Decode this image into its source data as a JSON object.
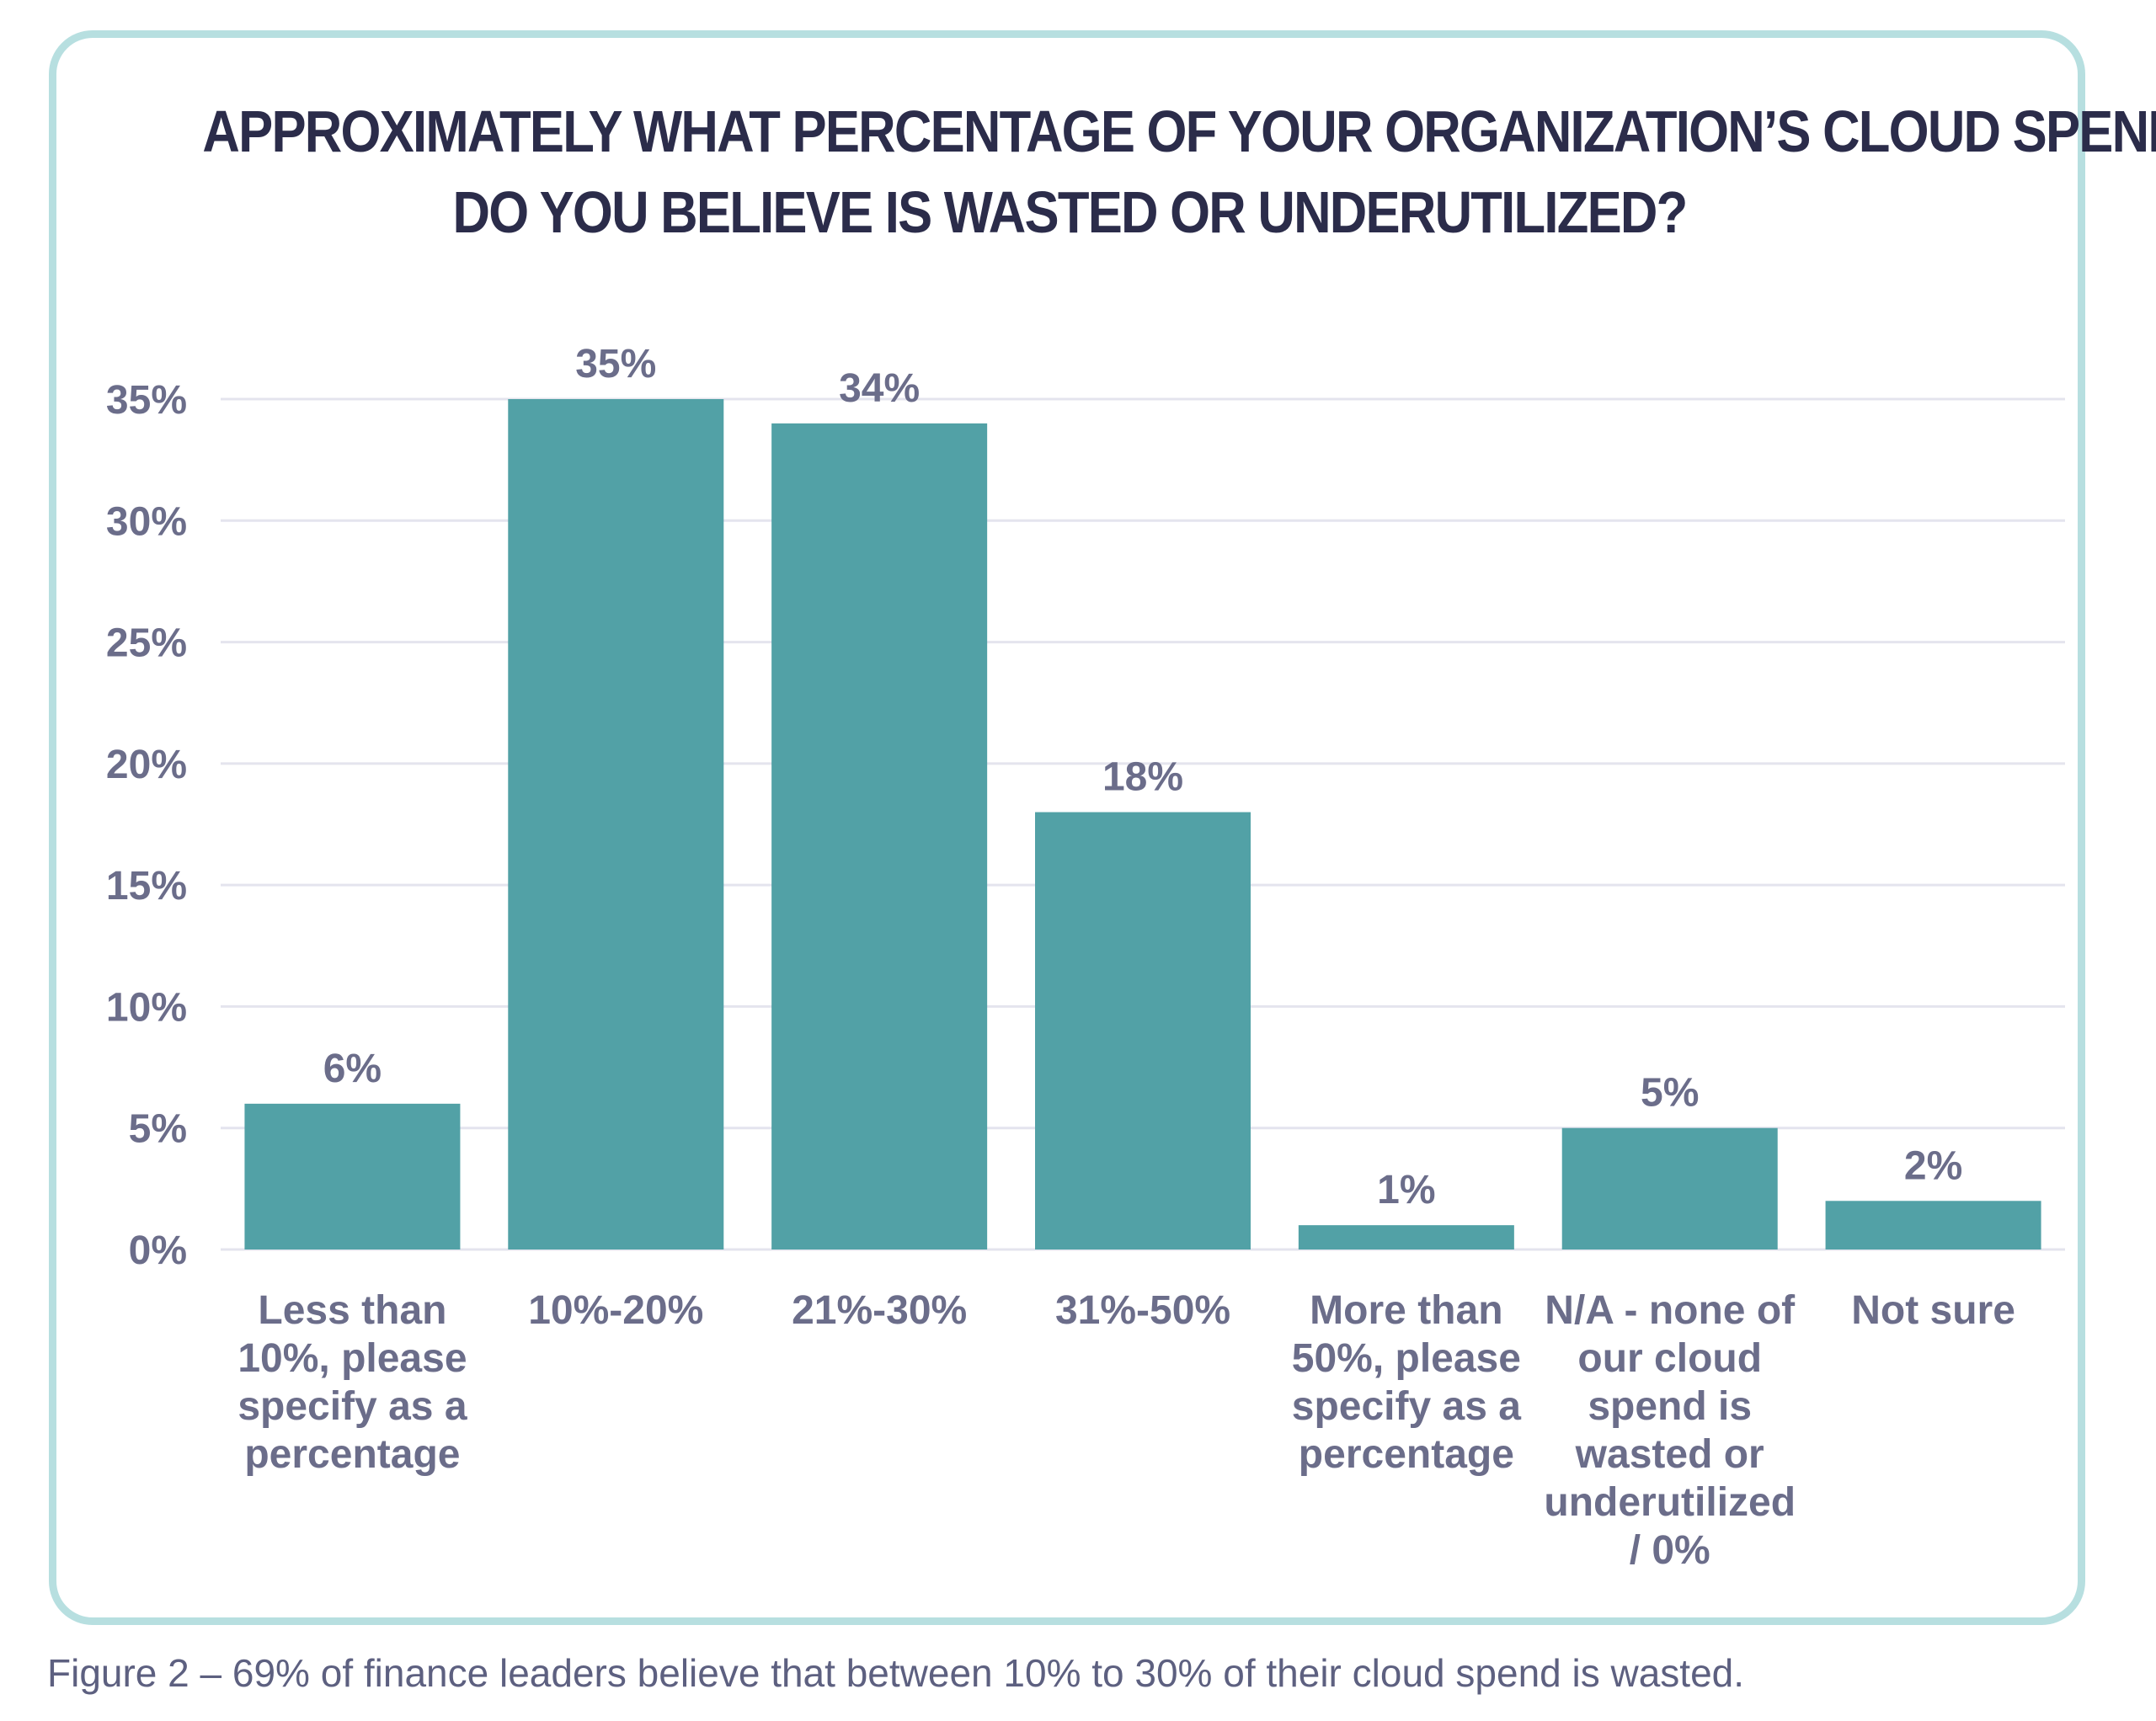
{
  "chart_data": {
    "type": "bar",
    "title_lines": [
      "APPROXIMATELY WHAT PERCENTAGE OF YOUR ORGANIZATION’S CLOUD SPEND",
      "DO YOU BELIEVE IS WASTED OR UNDERUTILIZED?"
    ],
    "categories": [
      [
        "Less than",
        "10%, please",
        "specify as a",
        "percentage"
      ],
      [
        "10%-20%"
      ],
      [
        "21%-30%"
      ],
      [
        "31%-50%"
      ],
      [
        "More than",
        "50%, please",
        "specify as a",
        "percentage"
      ],
      [
        "N/A - none of",
        "our cloud",
        "spend is",
        "wasted or",
        "underutilized",
        "/ 0%"
      ],
      [
        "Not sure"
      ]
    ],
    "values": [
      6,
      35,
      34,
      18,
      1,
      5,
      2
    ],
    "value_labels": [
      "6%",
      "35%",
      "34%",
      "18%",
      "1%",
      "5%",
      "2%"
    ],
    "y_ticks": [
      0,
      5,
      10,
      15,
      20,
      25,
      30,
      35
    ],
    "y_tick_labels": [
      "0%",
      "5%",
      "10%",
      "15%",
      "20%",
      "25%",
      "30%",
      "35%"
    ],
    "ylim": [
      0,
      35
    ],
    "grid": true,
    "bar_color": "#52a1a6",
    "gridline_color": "#e4e4ee"
  },
  "caption": "Figure 2 – 69% of finance leaders believe that between 10% to 30% of their cloud spend is wasted.",
  "frame_color": "#b7dfe0"
}
